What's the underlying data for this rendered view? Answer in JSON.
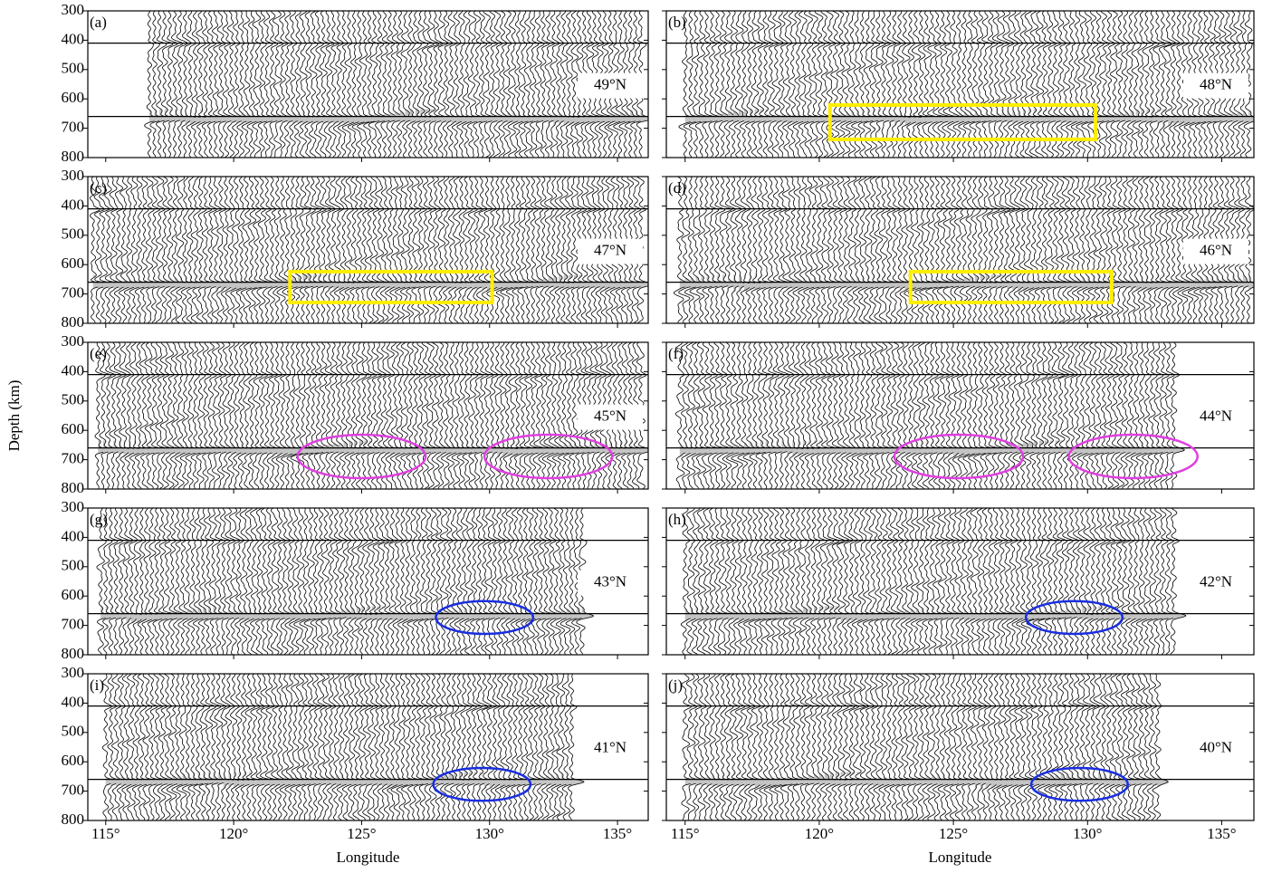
{
  "chart_data": [
    {
      "type": "wiggle",
      "panel_label": "(a)",
      "annotation": "49°N",
      "xlim": [
        114.3,
        136.2
      ],
      "ylim": [
        300,
        800
      ],
      "y_inverted": true,
      "xticks": [
        {
          "value": 115,
          "label": "115°"
        },
        {
          "value": 120,
          "label": "120°"
        },
        {
          "value": 125,
          "label": "125°"
        },
        {
          "value": 130,
          "label": "130°"
        },
        {
          "value": 135,
          "label": "135°"
        }
      ],
      "yticks": [
        300,
        400,
        500,
        600,
        700,
        800
      ],
      "hlines": [
        410,
        660
      ],
      "trace_lon": [
        116.7,
        136
      ],
      "shapes": []
    },
    {
      "type": "wiggle",
      "panel_label": "(b)",
      "annotation": "48°N",
      "xlim": [
        114.3,
        136.2
      ],
      "ylim": [
        300,
        800
      ],
      "y_inverted": true,
      "xticks": [
        {
          "value": 115,
          "label": "115°"
        },
        {
          "value": 120,
          "label": "120°"
        },
        {
          "value": 125,
          "label": "125°"
        },
        {
          "value": 130,
          "label": "130°"
        },
        {
          "value": 135,
          "label": "135°"
        }
      ],
      "yticks": [
        300,
        400,
        500,
        600,
        700,
        800
      ],
      "hlines": [
        410,
        660
      ],
      "trace_lon": [
        115,
        136
      ],
      "shapes": [
        {
          "kind": "rect",
          "color": "#ffee00",
          "lon": [
            120.4,
            130.3
          ],
          "depth": [
            621,
            738
          ]
        }
      ]
    },
    {
      "type": "wiggle",
      "panel_label": "(c)",
      "annotation": "47°N",
      "xlim": [
        114.3,
        136.2
      ],
      "ylim": [
        300,
        800
      ],
      "y_inverted": true,
      "xticks": [
        {
          "value": 115,
          "label": "115°"
        },
        {
          "value": 120,
          "label": "120°"
        },
        {
          "value": 125,
          "label": "125°"
        },
        {
          "value": 130,
          "label": "130°"
        },
        {
          "value": 135,
          "label": "135°"
        }
      ],
      "yticks": [
        300,
        400,
        500,
        600,
        700,
        800
      ],
      "hlines": [
        410,
        660
      ],
      "trace_lon": [
        114.5,
        136
      ],
      "shapes": [
        {
          "kind": "rect",
          "color": "#ffee00",
          "lon": [
            122.2,
            130.1
          ],
          "depth": [
            624,
            729
          ]
        }
      ]
    },
    {
      "type": "wiggle",
      "panel_label": "(d)",
      "annotation": "46°N",
      "xlim": [
        114.3,
        136.2
      ],
      "ylim": [
        300,
        800
      ],
      "y_inverted": true,
      "xticks": [
        {
          "value": 115,
          "label": "115°"
        },
        {
          "value": 120,
          "label": "120°"
        },
        {
          "value": 125,
          "label": "125°"
        },
        {
          "value": 130,
          "label": "130°"
        },
        {
          "value": 135,
          "label": "135°"
        }
      ],
      "yticks": [
        300,
        400,
        500,
        600,
        700,
        800
      ],
      "hlines": [
        410,
        660
      ],
      "trace_lon": [
        114.8,
        136
      ],
      "shapes": [
        {
          "kind": "rect",
          "color": "#ffee00",
          "lon": [
            123.4,
            130.9
          ],
          "depth": [
            624,
            729
          ]
        }
      ]
    },
    {
      "type": "wiggle",
      "panel_label": "(e)",
      "annotation": "45°N",
      "ylabel": "Depth (km)",
      "xlim": [
        114.3,
        136.2
      ],
      "ylim": [
        300,
        800
      ],
      "y_inverted": true,
      "xticks": [
        {
          "value": 115,
          "label": "115°"
        },
        {
          "value": 120,
          "label": "120°"
        },
        {
          "value": 125,
          "label": "125°"
        },
        {
          "value": 130,
          "label": "130°"
        },
        {
          "value": 135,
          "label": "135°"
        }
      ],
      "yticks": [
        300,
        400,
        500,
        600,
        700,
        800
      ],
      "hlines": [
        410,
        660
      ],
      "trace_lon": [
        114.7,
        136
      ],
      "shapes": [
        {
          "kind": "ellipse",
          "color": "#e040e0",
          "center": [
            125.0,
            689
          ],
          "radius": [
            2.5,
            74
          ]
        },
        {
          "kind": "ellipse",
          "color": "#e040e0",
          "center": [
            132.3,
            689
          ],
          "radius": [
            2.5,
            74
          ]
        }
      ]
    },
    {
      "type": "wiggle",
      "panel_label": "(f)",
      "annotation": "44°N",
      "xlim": [
        114.3,
        136.2
      ],
      "ylim": [
        300,
        800
      ],
      "y_inverted": true,
      "xticks": [
        {
          "value": 115,
          "label": "115°"
        },
        {
          "value": 120,
          "label": "120°"
        },
        {
          "value": 125,
          "label": "125°"
        },
        {
          "value": 130,
          "label": "130°"
        },
        {
          "value": 135,
          "label": "135°"
        }
      ],
      "yticks": [
        300,
        400,
        500,
        600,
        700,
        800
      ],
      "hlines": [
        410,
        660
      ],
      "trace_lon": [
        114.8,
        133.3
      ],
      "shapes": [
        {
          "kind": "ellipse",
          "color": "#e040e0",
          "center": [
            125.2,
            689
          ],
          "radius": [
            2.4,
            74
          ]
        },
        {
          "kind": "ellipse",
          "color": "#e040e0",
          "center": [
            131.7,
            689
          ],
          "radius": [
            2.4,
            74
          ]
        }
      ]
    },
    {
      "type": "wiggle",
      "panel_label": "(g)",
      "annotation": "43°N",
      "xlim": [
        114.3,
        136.2
      ],
      "ylim": [
        300,
        800
      ],
      "y_inverted": true,
      "xticks": [
        {
          "value": 115,
          "label": "115°"
        },
        {
          "value": 120,
          "label": "120°"
        },
        {
          "value": 125,
          "label": "125°"
        },
        {
          "value": 130,
          "label": "130°"
        },
        {
          "value": 135,
          "label": "135°"
        }
      ],
      "yticks": [
        300,
        400,
        500,
        600,
        700,
        800
      ],
      "hlines": [
        410,
        660
      ],
      "trace_lon": [
        114.8,
        133.6
      ],
      "shapes": [
        {
          "kind": "ellipse",
          "color": "#1a2ee0",
          "center": [
            129.8,
            673
          ],
          "radius": [
            1.9,
            56
          ]
        }
      ]
    },
    {
      "type": "wiggle",
      "panel_label": "(h)",
      "annotation": "42°N",
      "xlim": [
        114.3,
        136.2
      ],
      "ylim": [
        300,
        800
      ],
      "y_inverted": true,
      "xticks": [
        {
          "value": 115,
          "label": "115°"
        },
        {
          "value": 120,
          "label": "120°"
        },
        {
          "value": 125,
          "label": "125°"
        },
        {
          "value": 130,
          "label": "130°"
        },
        {
          "value": 135,
          "label": "135°"
        }
      ],
      "yticks": [
        300,
        400,
        500,
        600,
        700,
        800
      ],
      "hlines": [
        410,
        660
      ],
      "trace_lon": [
        115,
        133.2
      ],
      "shapes": [
        {
          "kind": "ellipse",
          "color": "#1a2ee0",
          "center": [
            129.5,
            673
          ],
          "radius": [
            1.8,
            56
          ]
        }
      ]
    },
    {
      "type": "wiggle",
      "panel_label": "(i)",
      "annotation": "41°N",
      "xlabel": "Longitude",
      "xlim": [
        114.3,
        136.2
      ],
      "ylim": [
        300,
        800
      ],
      "y_inverted": true,
      "xticks": [
        {
          "value": 115,
          "label": "115°"
        },
        {
          "value": 120,
          "label": "120°"
        },
        {
          "value": 125,
          "label": "125°"
        },
        {
          "value": 130,
          "label": "130°"
        },
        {
          "value": 135,
          "label": "135°"
        }
      ],
      "yticks": [
        300,
        400,
        500,
        600,
        700,
        800
      ],
      "hlines": [
        410,
        660
      ],
      "trace_lon": [
        115,
        133.2
      ],
      "shapes": [
        {
          "kind": "ellipse",
          "color": "#1a2ee0",
          "center": [
            129.7,
            677
          ],
          "radius": [
            1.9,
            56
          ]
        }
      ]
    },
    {
      "type": "wiggle",
      "panel_label": "(j)",
      "annotation": "40°N",
      "xlabel": "Longitude",
      "xlim": [
        114.3,
        136.2
      ],
      "ylim": [
        300,
        800
      ],
      "y_inverted": true,
      "xticks": [
        {
          "value": 115,
          "label": "115°"
        },
        {
          "value": 120,
          "label": "120°"
        },
        {
          "value": 125,
          "label": "125°"
        },
        {
          "value": 130,
          "label": "130°"
        },
        {
          "value": 135,
          "label": "135°"
        }
      ],
      "yticks": [
        300,
        400,
        500,
        600,
        700,
        800
      ],
      "hlines": [
        410,
        660
      ],
      "trace_lon": [
        115,
        132.7
      ],
      "shapes": [
        {
          "kind": "ellipse",
          "color": "#1a2ee0",
          "center": [
            129.7,
            677
          ],
          "radius": [
            1.8,
            56
          ]
        }
      ]
    }
  ]
}
